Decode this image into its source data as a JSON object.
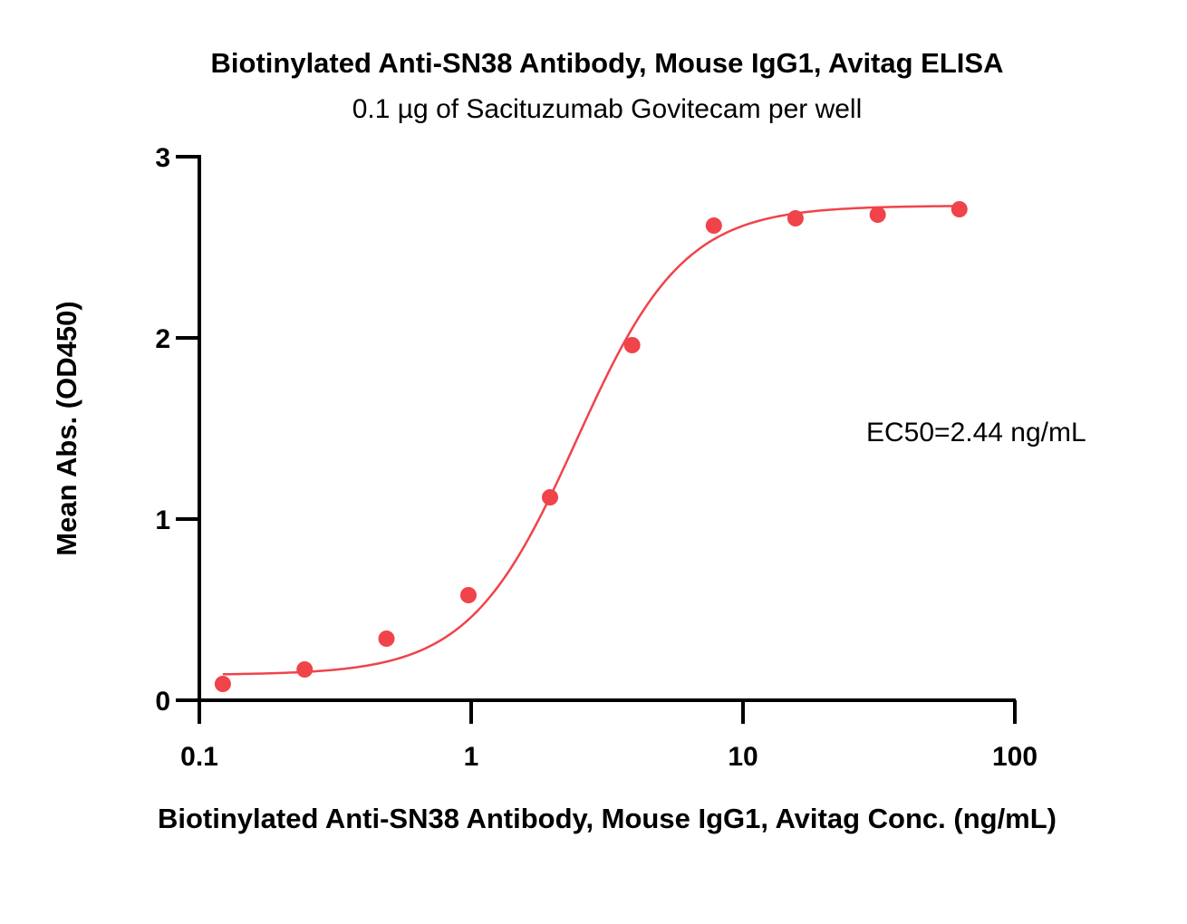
{
  "chart_data": {
    "type": "scatter",
    "title": "Biotinylated Anti-SN38 Antibody, Mouse IgG1, Avitag ELISA",
    "subtitle": "0.1 µg of Sacituzumab Govitecam per well",
    "xlabel": "Biotinylated Anti-SN38 Antibody, Mouse IgG1, Avitag Conc. (ng/mL)",
    "ylabel": "Mean Abs. (OD450)",
    "xscale": "log",
    "xlim": [
      0.1,
      100
    ],
    "ylim": [
      0,
      3
    ],
    "x_ticks": [
      0.1,
      1,
      10,
      100
    ],
    "x_tick_labels": [
      "0.1",
      "1",
      "10",
      "100"
    ],
    "y_ticks": [
      0,
      1,
      2,
      3
    ],
    "y_tick_labels": [
      "0",
      "1",
      "2",
      "3"
    ],
    "grid": false,
    "series": [
      {
        "color": "#f0434a",
        "x": [
          0.122,
          0.244,
          0.488,
          0.977,
          1.95,
          3.91,
          7.81,
          15.6,
          31.3,
          62.5
        ],
        "y": [
          0.09,
          0.17,
          0.34,
          0.58,
          1.12,
          1.96,
          2.62,
          2.66,
          2.68,
          2.71
        ],
        "fit": {
          "model": "4PL",
          "bottom": 0.14,
          "top": 2.73,
          "ec50": 2.44,
          "hill": 2.2
        }
      }
    ],
    "annotations": [
      {
        "text": "EC50=2.44 ng/mL"
      }
    ]
  }
}
